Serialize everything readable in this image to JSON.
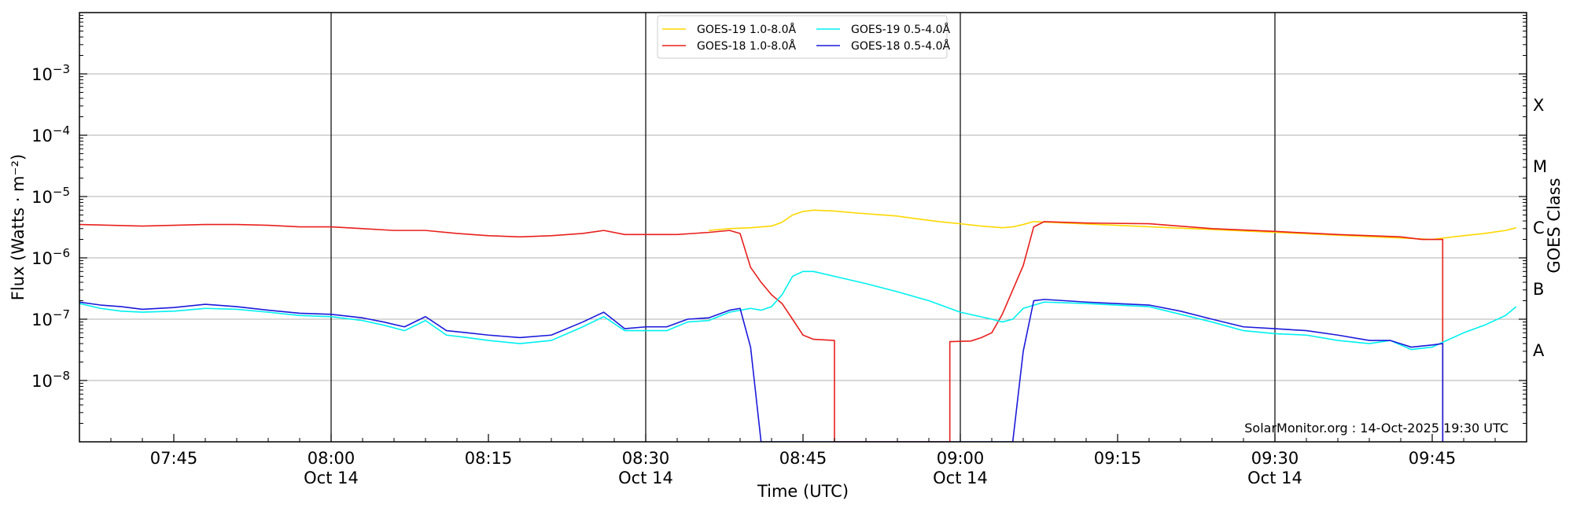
{
  "chart_data": {
    "type": "line",
    "xlabel": "Time (UTC)",
    "ylabel": "Flux (Watts · m⁻²)",
    "y2label": "GOES Class",
    "yscale": "log",
    "xlim": [
      "07:36",
      "09:54"
    ],
    "ylim": [
      1e-09,
      0.01
    ],
    "grid": "horizontal",
    "legend_position": "top-center",
    "x_ticks": [
      {
        "time": "07:45",
        "label": "07:45",
        "sublabel": ""
      },
      {
        "time": "08:00",
        "label": "08:00",
        "sublabel": "Oct 14"
      },
      {
        "time": "08:15",
        "label": "08:15",
        "sublabel": ""
      },
      {
        "time": "08:30",
        "label": "08:30",
        "sublabel": "Oct 14"
      },
      {
        "time": "08:45",
        "label": "08:45",
        "sublabel": ""
      },
      {
        "time": "09:00",
        "label": "09:00",
        "sublabel": "Oct 14"
      },
      {
        "time": "09:15",
        "label": "09:15",
        "sublabel": ""
      },
      {
        "time": "09:30",
        "label": "09:30",
        "sublabel": "Oct 14"
      },
      {
        "time": "09:45",
        "label": "09:45",
        "sublabel": ""
      }
    ],
    "vlines": [
      "08:00",
      "08:30",
      "09:00",
      "09:30"
    ],
    "y_ticks": [
      {
        "value": 1e-08,
        "base": "10",
        "exp": "−8"
      },
      {
        "value": 1e-07,
        "base": "10",
        "exp": "−7"
      },
      {
        "value": 1e-06,
        "base": "10",
        "exp": "−6"
      },
      {
        "value": 1e-05,
        "base": "10",
        "exp": "−5"
      },
      {
        "value": 0.0001,
        "base": "10",
        "exp": "−4"
      },
      {
        "value": 0.001,
        "base": "10",
        "exp": "−3"
      }
    ],
    "class_labels": [
      {
        "label": "A",
        "value": 3.16e-08
      },
      {
        "label": "B",
        "value": 3.16e-07
      },
      {
        "label": "C",
        "value": 3.16e-06
      },
      {
        "label": "M",
        "value": 3.16e-05
      },
      {
        "label": "X",
        "value": 0.000316
      }
    ],
    "credit": "SolarMonitor.org : 14-Oct-2025 19:30 UTC",
    "series": [
      {
        "name": "GOES-19 1.0-8.0Å",
        "color": "#ffd700",
        "points": [
          [
            "08:36",
            2.8e-06
          ],
          [
            "08:38",
            3e-06
          ],
          [
            "08:40",
            3.1e-06
          ],
          [
            "08:42",
            3.3e-06
          ],
          [
            "08:43",
            3.8e-06
          ],
          [
            "08:44",
            5e-06
          ],
          [
            "08:45",
            5.7e-06
          ],
          [
            "08:46",
            6e-06
          ],
          [
            "08:48",
            5.8e-06
          ],
          [
            "08:50",
            5.4e-06
          ],
          [
            "08:52",
            5.1e-06
          ],
          [
            "08:54",
            4.8e-06
          ],
          [
            "08:56",
            4.3e-06
          ],
          [
            "08:58",
            3.9e-06
          ],
          [
            "09:00",
            3.6e-06
          ],
          [
            "09:02",
            3.3e-06
          ],
          [
            "09:04",
            3.1e-06
          ],
          [
            "09:05",
            3.2e-06
          ],
          [
            "09:06",
            3.5e-06
          ],
          [
            "09:07",
            3.9e-06
          ],
          [
            "09:45",
            2e-06
          ],
          [
            "09:46",
            2.1e-06
          ],
          [
            "09:48",
            2.3e-06
          ],
          [
            "09:50",
            2.5e-06
          ],
          [
            "09:52",
            2.8e-06
          ],
          [
            "09:53",
            3.1e-06
          ]
        ]
      },
      {
        "name": "GOES-18 1.0-8.0Å",
        "color": "#e8201c",
        "points": [
          [
            "07:36",
            3.5e-06
          ],
          [
            "07:39",
            3.4e-06
          ],
          [
            "07:42",
            3.3e-06
          ],
          [
            "07:45",
            3.4e-06
          ],
          [
            "07:48",
            3.5e-06
          ],
          [
            "07:51",
            3.5e-06
          ],
          [
            "07:54",
            3.4e-06
          ],
          [
            "07:57",
            3.2e-06
          ],
          [
            "08:00",
            3.2e-06
          ],
          [
            "08:03",
            3e-06
          ],
          [
            "08:06",
            2.8e-06
          ],
          [
            "08:09",
            2.8e-06
          ],
          [
            "08:12",
            2.5e-06
          ],
          [
            "08:15",
            2.3e-06
          ],
          [
            "08:18",
            2.2e-06
          ],
          [
            "08:21",
            2.3e-06
          ],
          [
            "08:24",
            2.5e-06
          ],
          [
            "08:26",
            2.8e-06
          ],
          [
            "08:28",
            2.4e-06
          ],
          [
            "08:30",
            2.4e-06
          ],
          [
            "08:33",
            2.4e-06
          ],
          [
            "08:36",
            2.6e-06
          ],
          [
            "08:38",
            2.8e-06
          ],
          [
            "08:39",
            2.5e-06
          ],
          [
            "08:40",
            7e-07
          ],
          [
            "08:41",
            4e-07
          ],
          [
            "08:42",
            2.5e-07
          ],
          [
            "08:43",
            1.8e-07
          ],
          [
            "08:44",
            1e-07
          ],
          [
            "08:45",
            5.5e-08
          ],
          [
            "08:46",
            4.7e-08
          ],
          [
            "08:48",
            4.5e-08
          ],
          [
            "08:48",
            1e-09
          ],
          [
            "08:59",
            1e-09
          ],
          [
            "08:59",
            4.3e-08
          ],
          [
            "09:01",
            4.4e-08
          ],
          [
            "09:02",
            5e-08
          ],
          [
            "09:03",
            6e-08
          ],
          [
            "09:04",
            1.2e-07
          ],
          [
            "09:05",
            3e-07
          ],
          [
            "09:06",
            7.5e-07
          ],
          [
            "09:07",
            3.2e-06
          ],
          [
            "09:08",
            3.9e-06
          ],
          [
            "09:12",
            3.7e-06
          ],
          [
            "09:18",
            3.6e-06
          ],
          [
            "09:24",
            3e-06
          ],
          [
            "09:30",
            2.7e-06
          ],
          [
            "09:36",
            2.4e-06
          ],
          [
            "09:42",
            2.2e-06
          ],
          [
            "09:44",
            2e-06
          ],
          [
            "09:46",
            2e-06
          ],
          [
            "09:46",
            1e-09
          ]
        ]
      },
      {
        "name": "GOES-19 0.5-4.0Å",
        "color": "#00f0f0",
        "points": [
          [
            "07:36",
            1.8e-07
          ],
          [
            "07:38",
            1.5e-07
          ],
          [
            "07:40",
            1.35e-07
          ],
          [
            "07:42",
            1.3e-07
          ],
          [
            "07:45",
            1.35e-07
          ],
          [
            "07:48",
            1.5e-07
          ],
          [
            "07:51",
            1.45e-07
          ],
          [
            "07:54",
            1.3e-07
          ],
          [
            "07:57",
            1.15e-07
          ],
          [
            "08:00",
            1.1e-07
          ],
          [
            "08:03",
            9.5e-08
          ],
          [
            "08:05",
            8e-08
          ],
          [
            "08:07",
            6.5e-08
          ],
          [
            "08:09",
            9.5e-08
          ],
          [
            "08:11",
            5.5e-08
          ],
          [
            "08:13",
            5e-08
          ],
          [
            "08:15",
            4.5e-08
          ],
          [
            "08:18",
            4e-08
          ],
          [
            "08:21",
            4.5e-08
          ],
          [
            "08:24",
            7.5e-08
          ],
          [
            "08:26",
            1.1e-07
          ],
          [
            "08:28",
            6.5e-08
          ],
          [
            "08:30",
            6.5e-08
          ],
          [
            "08:32",
            6.5e-08
          ],
          [
            "08:34",
            9e-08
          ],
          [
            "08:36",
            9.5e-08
          ],
          [
            "08:38",
            1.3e-07
          ],
          [
            "08:40",
            1.5e-07
          ],
          [
            "08:41",
            1.4e-07
          ],
          [
            "08:42",
            1.6e-07
          ],
          [
            "08:43",
            2.5e-07
          ],
          [
            "08:44",
            5e-07
          ],
          [
            "08:45",
            6e-07
          ],
          [
            "08:46",
            6e-07
          ],
          [
            "08:48",
            5e-07
          ],
          [
            "08:51",
            3.8e-07
          ],
          [
            "08:54",
            2.8e-07
          ],
          [
            "08:57",
            2e-07
          ],
          [
            "09:00",
            1.3e-07
          ],
          [
            "09:03",
            1e-07
          ],
          [
            "09:04",
            9e-08
          ],
          [
            "09:05",
            1e-07
          ],
          [
            "09:06",
            1.5e-07
          ],
          [
            "09:08",
            1.9e-07
          ],
          [
            "09:12",
            1.8e-07
          ],
          [
            "09:18",
            1.6e-07
          ],
          [
            "09:21",
            1.2e-07
          ],
          [
            "09:24",
            9e-08
          ],
          [
            "09:27",
            6.5e-08
          ],
          [
            "09:30",
            5.8e-08
          ],
          [
            "09:33",
            5.5e-08
          ],
          [
            "09:36",
            4.5e-08
          ],
          [
            "09:39",
            4e-08
          ],
          [
            "09:41",
            4.5e-08
          ],
          [
            "09:43",
            3.2e-08
          ],
          [
            "09:45",
            3.5e-08
          ],
          [
            "09:46",
            4.2e-08
          ],
          [
            "09:48",
            6e-08
          ],
          [
            "09:50",
            8e-08
          ],
          [
            "09:52",
            1.15e-07
          ],
          [
            "09:53",
            1.6e-07
          ]
        ]
      },
      {
        "name": "GOES-18 0.5-4.0Å",
        "color": "#1a1adc",
        "points": [
          [
            "07:36",
            1.9e-07
          ],
          [
            "07:38",
            1.7e-07
          ],
          [
            "07:40",
            1.6e-07
          ],
          [
            "07:42",
            1.45e-07
          ],
          [
            "07:45",
            1.55e-07
          ],
          [
            "07:48",
            1.75e-07
          ],
          [
            "07:51",
            1.6e-07
          ],
          [
            "07:54",
            1.4e-07
          ],
          [
            "07:57",
            1.25e-07
          ],
          [
            "08:00",
            1.2e-07
          ],
          [
            "08:03",
            1.05e-07
          ],
          [
            "08:05",
            9e-08
          ],
          [
            "08:07",
            7.5e-08
          ],
          [
            "08:09",
            1.1e-07
          ],
          [
            "08:11",
            6.5e-08
          ],
          [
            "08:13",
            6e-08
          ],
          [
            "08:15",
            5.5e-08
          ],
          [
            "08:18",
            5e-08
          ],
          [
            "08:21",
            5.5e-08
          ],
          [
            "08:24",
            9e-08
          ],
          [
            "08:26",
            1.3e-07
          ],
          [
            "08:28",
            7e-08
          ],
          [
            "08:30",
            7.5e-08
          ],
          [
            "08:32",
            7.5e-08
          ],
          [
            "08:34",
            1e-07
          ],
          [
            "08:36",
            1.05e-07
          ],
          [
            "08:38",
            1.4e-07
          ],
          [
            "08:39",
            1.5e-07
          ],
          [
            "08:40",
            3.5e-08
          ],
          [
            "08:41",
            1e-09
          ],
          [
            "09:05",
            1e-09
          ],
          [
            "09:06",
            3e-08
          ],
          [
            "09:07",
            2e-07
          ],
          [
            "09:08",
            2.1e-07
          ],
          [
            "09:12",
            1.9e-07
          ],
          [
            "09:18",
            1.7e-07
          ],
          [
            "09:21",
            1.35e-07
          ],
          [
            "09:24",
            1e-07
          ],
          [
            "09:27",
            7.5e-08
          ],
          [
            "09:30",
            7e-08
          ],
          [
            "09:33",
            6.5e-08
          ],
          [
            "09:36",
            5.5e-08
          ],
          [
            "09:39",
            4.5e-08
          ],
          [
            "09:41",
            4.5e-08
          ],
          [
            "09:43",
            3.5e-08
          ],
          [
            "09:45",
            3.8e-08
          ],
          [
            "09:46",
            4e-08
          ],
          [
            "09:46",
            1e-09
          ]
        ]
      }
    ]
  }
}
